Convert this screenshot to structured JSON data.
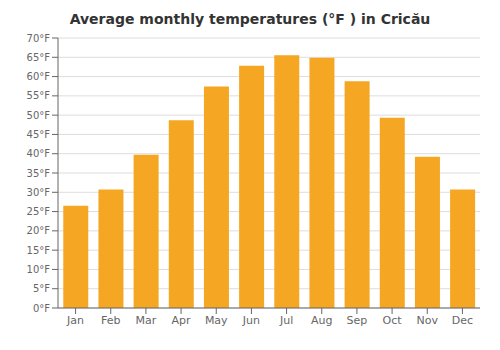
{
  "chart_data": {
    "type": "bar",
    "title": "Average monthly temperatures (°F ) in Cricău",
    "categories": [
      "Jan",
      "Feb",
      "Mar",
      "Apr",
      "May",
      "Jun",
      "Jul",
      "Aug",
      "Sep",
      "Oct",
      "Nov",
      "Dec"
    ],
    "values": [
      26.5,
      30.7,
      39.7,
      48.7,
      57.4,
      62.8,
      65.5,
      64.9,
      58.8,
      49.3,
      39.2,
      30.7
    ],
    "color": "#F5A623",
    "ylim": [
      0,
      70
    ],
    "yticks": [
      {
        "value": 0,
        "label": "0°F"
      },
      {
        "value": 5,
        "label": "5°F"
      },
      {
        "value": 10,
        "label": "10°F"
      },
      {
        "value": 15,
        "label": "15°F"
      },
      {
        "value": 20,
        "label": "20°F"
      },
      {
        "value": 25,
        "label": "25°F"
      },
      {
        "value": 30,
        "label": "30°F"
      },
      {
        "value": 35,
        "label": "35°F"
      },
      {
        "value": 40,
        "label": "40°F"
      },
      {
        "value": 45,
        "label": "45°F"
      },
      {
        "value": 50,
        "label": "50°F"
      },
      {
        "value": 55,
        "label": "55°F"
      },
      {
        "value": 60,
        "label": "60°F"
      },
      {
        "value": 65,
        "label": "65°F"
      },
      {
        "value": 70,
        "label": "70°F"
      }
    ],
    "grid": true
  }
}
